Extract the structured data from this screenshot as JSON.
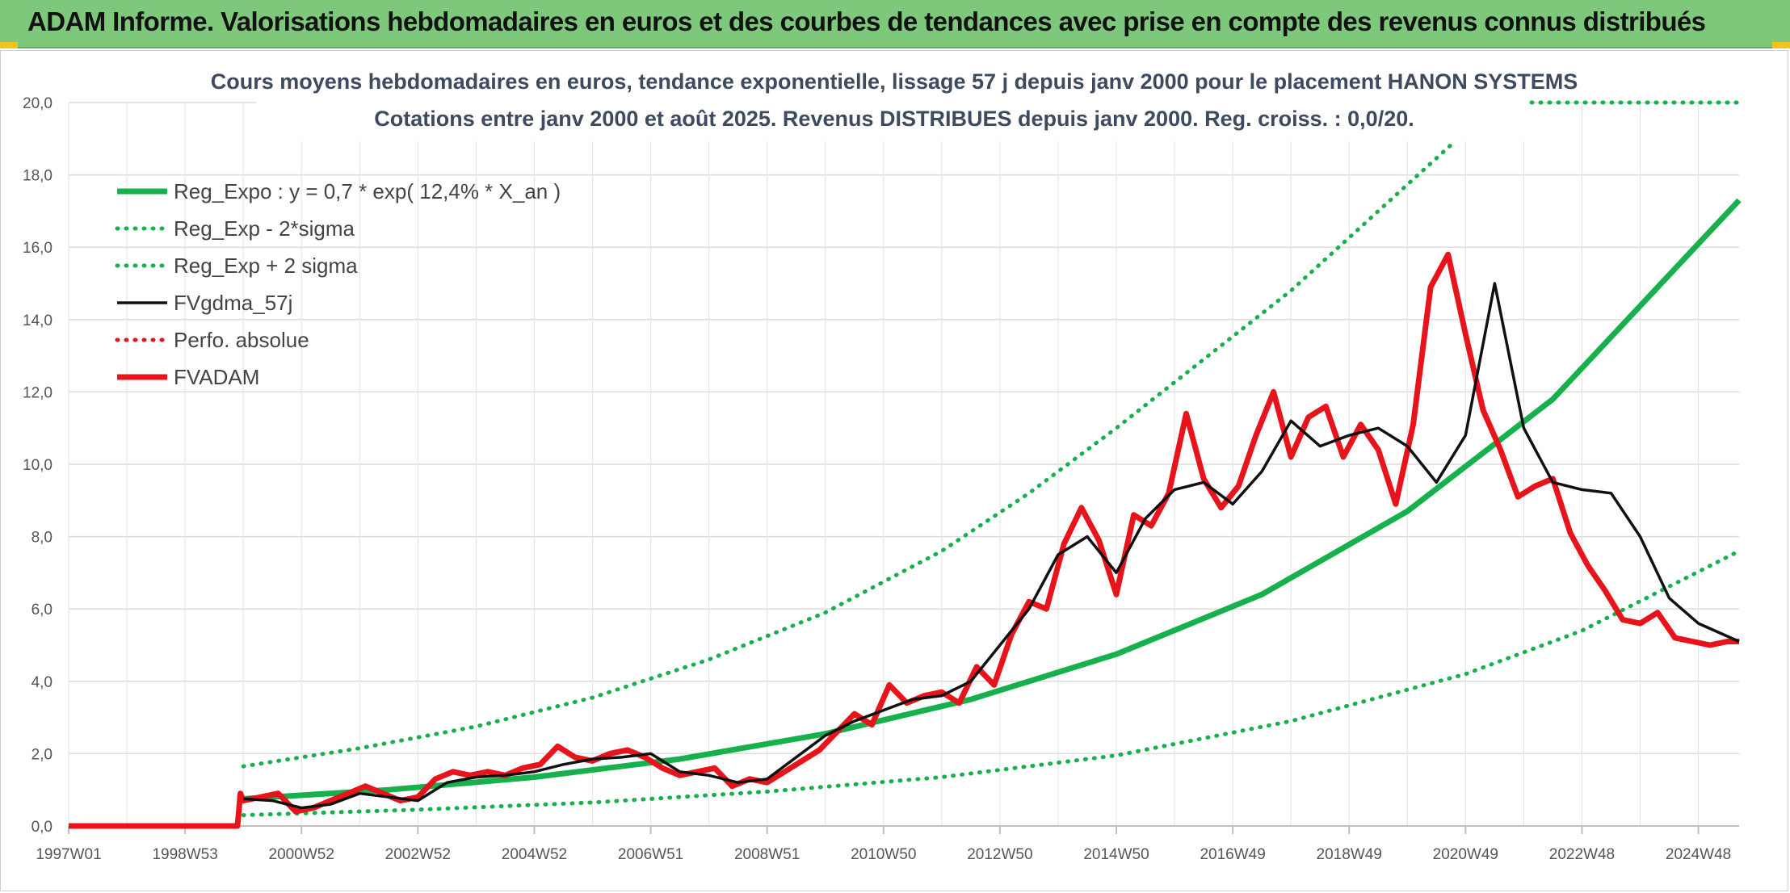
{
  "header": {
    "title": "ADAM Informe. Valorisations hebdomadaires en euros et des courbes de tendances avec prise en compte des revenus connus distribués"
  },
  "chart_data": {
    "type": "line",
    "title": "Cours moyens hebdomadaires en euros, tendance exponentielle, lissage 57 j depuis janv 2000 pour le placement HANON SYSTEMS",
    "subtitle": "Cotations entre janv 2000 et août 2025. Revenus DISTRIBUES depuis janv 2000. Reg. croiss. : 0,0/20.",
    "xlabel": "",
    "ylabel": "",
    "ylim": [
      0,
      20
    ],
    "y_ticks": [
      "0,0",
      "2,0",
      "4,0",
      "6,0",
      "8,0",
      "10,0",
      "12,0",
      "14,0",
      "16,0",
      "18,0",
      "20,0"
    ],
    "x_ticks": [
      {
        "label": "1997W01",
        "year": 1997.0
      },
      {
        "label": "1998W53",
        "year": 1999.0
      },
      {
        "label": "2000W52",
        "year": 2001.0
      },
      {
        "label": "2002W52",
        "year": 2003.0
      },
      {
        "label": "2004W52",
        "year": 2005.0
      },
      {
        "label": "2006W51",
        "year": 2007.0
      },
      {
        "label": "2008W51",
        "year": 2009.0
      },
      {
        "label": "2010W50",
        "year": 2011.0
      },
      {
        "label": "2012W50",
        "year": 2013.0
      },
      {
        "label": "2014W50",
        "year": 2015.0
      },
      {
        "label": "2016W49",
        "year": 2017.0
      },
      {
        "label": "2018W49",
        "year": 2019.0
      },
      {
        "label": "2020W49",
        "year": 2021.0
      },
      {
        "label": "2022W48",
        "year": 2023.0
      },
      {
        "label": "2024W48",
        "year": 2025.0
      }
    ],
    "x_range": [
      1997.0,
      2025.7
    ],
    "grid": true,
    "legend_position": "top-left",
    "series": [
      {
        "name": "Reg_Expo : y = 0,7 * exp( 12,4% *  X_an )",
        "color": "#16b04c",
        "style": "solid-thick",
        "x": [
          2000.0,
          2002.5,
          2005.0,
          2007.5,
          2010.0,
          2012.5,
          2015.0,
          2017.5,
          2020.0,
          2022.5,
          2025.7
        ],
        "y": [
          0.75,
          1.0,
          1.35,
          1.85,
          2.55,
          3.5,
          4.75,
          6.4,
          8.7,
          11.8,
          17.3
        ]
      },
      {
        "name": "Reg_Exp - 2*sigma",
        "color": "#16b04c",
        "style": "dotted",
        "x": [
          2000.0,
          2003.0,
          2006.0,
          2009.0,
          2012.0,
          2015.0,
          2018.0,
          2021.0,
          2023.0,
          2025.7
        ],
        "y": [
          0.3,
          0.45,
          0.65,
          0.95,
          1.35,
          1.95,
          2.9,
          4.2,
          5.4,
          7.6
        ]
      },
      {
        "name": "Reg_Exp + 2 sigma",
        "color": "#16b04c",
        "style": "dotted",
        "x": [
          2000.0,
          2002.0,
          2004.0,
          2006.0,
          2008.0,
          2010.0,
          2012.0,
          2013.5,
          2015.0,
          2016.5,
          2018.0,
          2019.5,
          2020.8
        ],
        "y": [
          1.65,
          2.15,
          2.75,
          3.55,
          4.6,
          5.9,
          7.6,
          9.2,
          11.0,
          12.9,
          14.8,
          17.0,
          18.9
        ]
      },
      {
        "name": "FVgdma_57j",
        "color": "#111111",
        "style": "solid",
        "x": [
          2000.0,
          2000.5,
          2001.0,
          2001.5,
          2002.0,
          2002.5,
          2003.0,
          2003.5,
          2004.0,
          2004.5,
          2005.0,
          2005.5,
          2006.0,
          2006.5,
          2007.0,
          2007.5,
          2008.0,
          2008.5,
          2009.0,
          2009.5,
          2010.0,
          2010.5,
          2011.0,
          2011.5,
          2012.0,
          2012.5,
          2013.0,
          2013.5,
          2014.0,
          2014.5,
          2015.0,
          2015.5,
          2016.0,
          2016.5,
          2017.0,
          2017.5,
          2018.0,
          2018.5,
          2019.0,
          2019.5,
          2020.0,
          2020.5,
          2021.0,
          2021.5,
          2022.0,
          2022.5,
          2023.0,
          2023.5,
          2024.0,
          2024.5,
          2025.0,
          2025.7
        ],
        "y": [
          0.75,
          0.7,
          0.5,
          0.6,
          0.9,
          0.8,
          0.7,
          1.2,
          1.35,
          1.4,
          1.5,
          1.7,
          1.85,
          1.9,
          2.0,
          1.5,
          1.4,
          1.2,
          1.3,
          1.9,
          2.5,
          2.9,
          3.2,
          3.5,
          3.6,
          4.0,
          5.0,
          6.0,
          7.5,
          8.0,
          7.0,
          8.5,
          9.3,
          9.5,
          8.9,
          9.8,
          11.2,
          10.5,
          10.8,
          11.0,
          10.5,
          9.5,
          10.8,
          15.0,
          11.0,
          9.5,
          9.3,
          9.2,
          8.0,
          6.3,
          5.6,
          5.1
        ]
      },
      {
        "name": "Perfo. absolue",
        "color": "#e8141b",
        "style": "dotted",
        "x": [],
        "y": []
      },
      {
        "name": "FVADAM",
        "color": "#e8141b",
        "style": "solid-thick",
        "x": [
          1997.0,
          1999.9,
          1999.95,
          2000.0,
          2000.3,
          2000.6,
          2000.9,
          2001.2,
          2001.5,
          2001.8,
          2002.1,
          2002.4,
          2002.7,
          2003.0,
          2003.3,
          2003.6,
          2003.9,
          2004.2,
          2004.5,
          2004.8,
          2005.1,
          2005.4,
          2005.7,
          2006.0,
          2006.3,
          2006.6,
          2006.9,
          2007.2,
          2007.5,
          2007.8,
          2008.1,
          2008.4,
          2008.7,
          2009.0,
          2009.3,
          2009.6,
          2009.9,
          2010.2,
          2010.5,
          2010.8,
          2011.1,
          2011.4,
          2011.7,
          2012.0,
          2012.3,
          2012.6,
          2012.9,
          2013.2,
          2013.5,
          2013.8,
          2014.1,
          2014.4,
          2014.7,
          2015.0,
          2015.3,
          2015.6,
          2015.9,
          2016.2,
          2016.5,
          2016.8,
          2017.1,
          2017.4,
          2017.7,
          2018.0,
          2018.3,
          2018.6,
          2018.9,
          2019.2,
          2019.5,
          2019.8,
          2020.1,
          2020.4,
          2020.7,
          2021.0,
          2021.3,
          2021.6,
          2021.9,
          2022.2,
          2022.5,
          2022.8,
          2023.1,
          2023.4,
          2023.7,
          2024.0,
          2024.3,
          2024.6,
          2024.9,
          2025.2,
          2025.5,
          2025.7
        ],
        "y": [
          0.0,
          0.0,
          0.9,
          0.7,
          0.8,
          0.9,
          0.4,
          0.5,
          0.7,
          0.9,
          1.1,
          0.9,
          0.7,
          0.8,
          1.3,
          1.5,
          1.4,
          1.5,
          1.4,
          1.6,
          1.7,
          2.2,
          1.9,
          1.8,
          2.0,
          2.1,
          1.9,
          1.6,
          1.4,
          1.5,
          1.6,
          1.1,
          1.3,
          1.2,
          1.5,
          1.8,
          2.1,
          2.6,
          3.1,
          2.8,
          3.9,
          3.4,
          3.6,
          3.7,
          3.4,
          4.4,
          3.9,
          5.3,
          6.2,
          6.0,
          7.8,
          8.8,
          7.9,
          6.4,
          8.6,
          8.3,
          9.2,
          11.4,
          9.6,
          8.8,
          9.4,
          10.8,
          12.0,
          10.2,
          11.3,
          11.6,
          10.2,
          11.1,
          10.4,
          8.9,
          11.1,
          14.9,
          15.8,
          13.6,
          11.5,
          10.4,
          9.1,
          9.4,
          9.6,
          8.1,
          7.2,
          6.5,
          5.7,
          5.6,
          5.9,
          5.2,
          5.1,
          5.0,
          5.1,
          5.1
        ]
      }
    ]
  }
}
